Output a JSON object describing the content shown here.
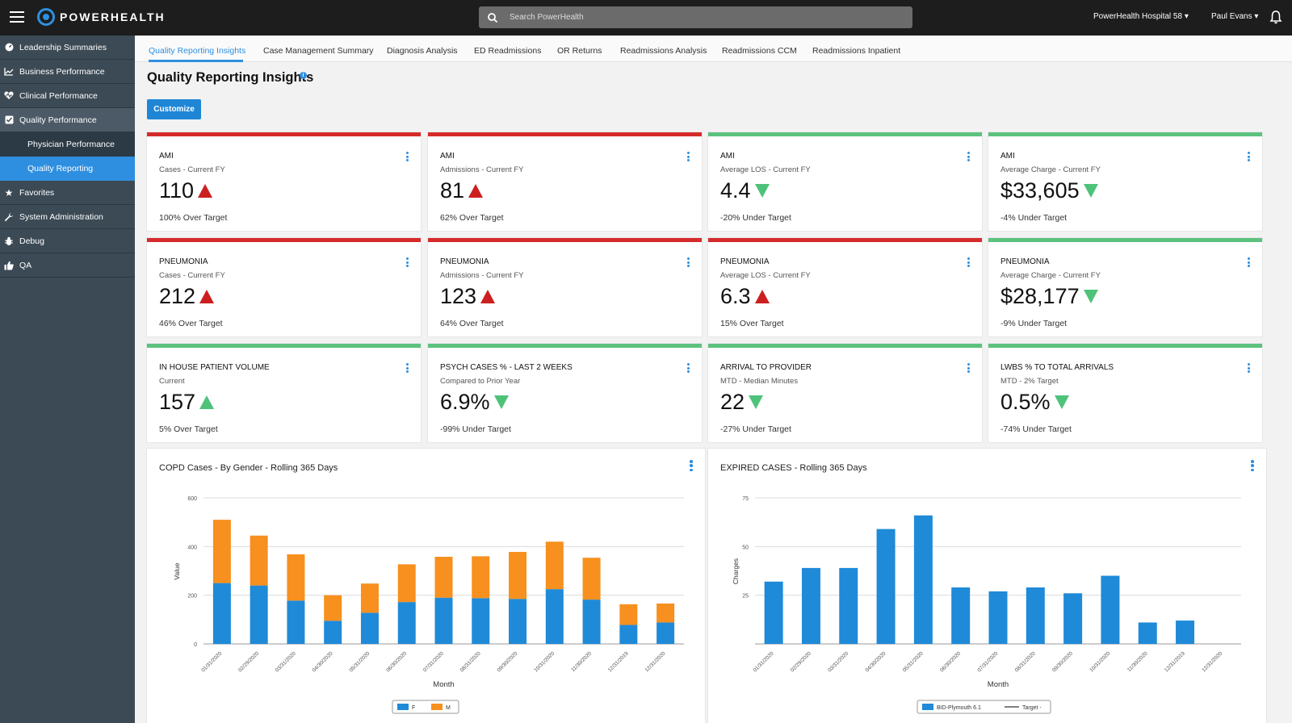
{
  "topbar": {
    "brand": "POWERHEALTH",
    "search_placeholder": "Search PowerHealth",
    "hospital": "PowerHealth Hospital 58",
    "user": "Paul Evans"
  },
  "sidebar": {
    "items": [
      {
        "label": "Leadership Summaries",
        "icon": "speedometer-icon"
      },
      {
        "label": "Business Performance",
        "icon": "line-chart-icon"
      },
      {
        "label": "Clinical Performance",
        "icon": "heartbeat-icon"
      },
      {
        "label": "Quality Performance",
        "icon": "checkbox-icon"
      },
      {
        "label": "Favorites",
        "icon": "star-icon"
      },
      {
        "label": "System Administration",
        "icon": "wrench-icon"
      },
      {
        "label": "Debug",
        "icon": "bug-icon"
      },
      {
        "label": "QA",
        "icon": "thumbs-up-icon"
      }
    ],
    "subitems": [
      "Physician Performance",
      "Quality Reporting"
    ]
  },
  "tabs": [
    "Quality Reporting Insights",
    "Case Management Summary",
    "Diagnosis Analysis",
    "ED Readmissions",
    "OR Returns",
    "Readmissions Analysis",
    "Readmissions CCM",
    "Readmissions Inpatient"
  ],
  "page": {
    "title": "Quality Reporting Insights",
    "customize_label": "Customize"
  },
  "cards": [
    {
      "title": "AMI",
      "sub": "Cases - Current FY",
      "value": "110",
      "trend": "up-bad",
      "foot": "100% Over Target",
      "status": "red"
    },
    {
      "title": "AMI",
      "sub": "Admissions - Current FY",
      "value": "81",
      "trend": "up-bad",
      "foot": "62% Over Target",
      "status": "red"
    },
    {
      "title": "AMI",
      "sub": "Average LOS - Current FY",
      "value": "4.4",
      "trend": "down-good",
      "foot": "-20% Under Target",
      "status": "green"
    },
    {
      "title": "AMI",
      "sub": "Average Charge - Current FY",
      "value": "$33,605",
      "trend": "down-good",
      "foot": "-4% Under Target",
      "status": "green"
    },
    {
      "title": "PNEUMONIA",
      "sub": "Cases - Current FY",
      "value": "212",
      "trend": "up-bad",
      "foot": "46% Over Target",
      "status": "red"
    },
    {
      "title": "PNEUMONIA",
      "sub": "Admissions - Current FY",
      "value": "123",
      "trend": "up-bad",
      "foot": "64% Over Target",
      "status": "red"
    },
    {
      "title": "PNEUMONIA",
      "sub": "Average LOS - Current FY",
      "value": "6.3",
      "trend": "up-bad",
      "foot": "15% Over Target",
      "status": "red"
    },
    {
      "title": "PNEUMONIA",
      "sub": "Average Charge - Current FY",
      "value": "$28,177",
      "trend": "down-good",
      "foot": "-9% Under Target",
      "status": "green"
    },
    {
      "title": "IN HOUSE PATIENT VOLUME",
      "sub": "Current",
      "value": "157",
      "trend": "up-good",
      "foot": "5% Over Target",
      "status": "green"
    },
    {
      "title": "PSYCH CASES % - LAST 2 WEEKS",
      "sub": "Compared to Prior Year",
      "value": "6.9%",
      "trend": "down-good",
      "foot": "-99% Under Target",
      "status": "green"
    },
    {
      "title": "ARRIVAL TO PROVIDER",
      "sub": "MTD - Median Minutes",
      "value": "22",
      "trend": "down-good",
      "foot": "-27% Under Target",
      "status": "green"
    },
    {
      "title": "LWBS % TO TOTAL ARRIVALS",
      "sub": "MTD - 2% Target",
      "value": "0.5%",
      "trend": "down-good",
      "foot": "-74% Under Target",
      "status": "green"
    }
  ],
  "colors": {
    "accent": "#2e8fe0",
    "bad": "#d62b2b",
    "good": "#5cc27f",
    "series_f": "#1f8ad8",
    "series_m": "#f7901e"
  },
  "chart_data": [
    {
      "type": "bar",
      "stacked": true,
      "title": "COPD Cases - By Gender - Rolling 365 Days",
      "xlabel": "Month",
      "ylabel": "Value",
      "ylim": [
        0,
        600
      ],
      "yticks": [
        0,
        200,
        400,
        600
      ],
      "categories": [
        "01/31/2020",
        "02/29/2020",
        "03/31/2020",
        "04/30/2020",
        "05/31/2020",
        "06/30/2020",
        "07/31/2020",
        "08/31/2020",
        "09/30/2020",
        "10/31/2020",
        "11/30/2020",
        "12/31/2019",
        "12/31/2020"
      ],
      "series": [
        {
          "name": "F",
          "values": [
            250,
            240,
            178,
            95,
            128,
            172,
            190,
            188,
            185,
            225,
            182,
            78,
            88
          ]
        },
        {
          "name": "M",
          "values": [
            260,
            205,
            190,
            105,
            120,
            155,
            168,
            172,
            193,
            195,
            172,
            85,
            78
          ]
        }
      ],
      "legend": "bottom-center"
    },
    {
      "type": "bar",
      "title": "EXPIRED CASES - Rolling 365 Days",
      "xlabel": "Month",
      "ylabel": "Charges",
      "ylim": [
        0,
        75
      ],
      "yticks": [
        25,
        50,
        75
      ],
      "categories": [
        "01/31/2020",
        "02/29/2020",
        "03/31/2020",
        "04/30/2020",
        "05/31/2020",
        "06/30/2020",
        "07/31/2020",
        "08/31/2020",
        "09/30/2020",
        "10/31/2020",
        "11/30/2020",
        "12/31/2019",
        "12/31/2020"
      ],
      "series": [
        {
          "name": "BID-Plymouth 6.1",
          "values": [
            32,
            39,
            39,
            59,
            66,
            29,
            27,
            29,
            26,
            35,
            11,
            12,
            0
          ]
        }
      ],
      "target_label": "Target -",
      "legend": "bottom-center"
    }
  ]
}
